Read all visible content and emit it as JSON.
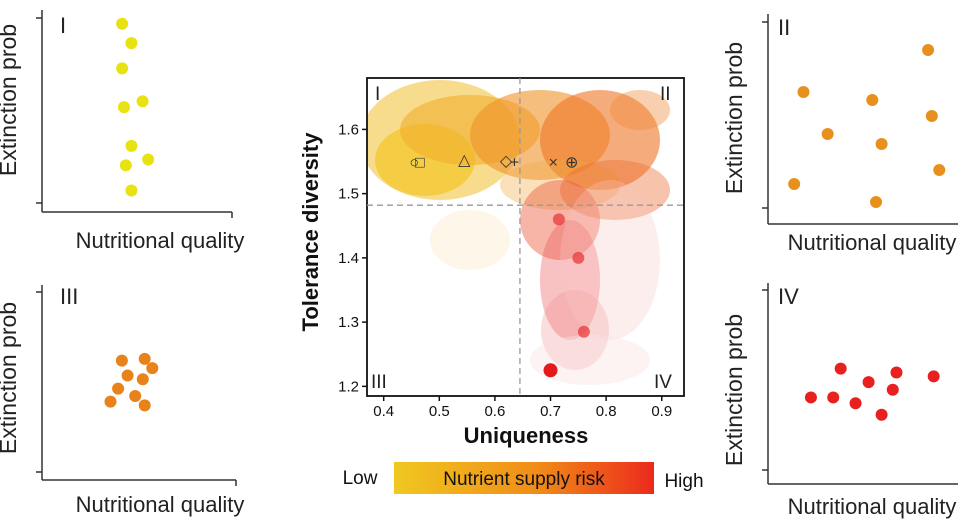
{
  "chart_data": [
    {
      "type": "scatter",
      "panel_label": "I",
      "xlabel": "Nutritional quality",
      "ylabel": "Extinction prob",
      "color": "#e8e212",
      "points": [
        [
          0.42,
          0.95
        ],
        [
          0.47,
          0.85
        ],
        [
          0.42,
          0.72
        ],
        [
          0.43,
          0.52
        ],
        [
          0.53,
          0.55
        ],
        [
          0.47,
          0.32
        ],
        [
          0.44,
          0.22
        ],
        [
          0.56,
          0.25
        ],
        [
          0.47,
          0.09
        ]
      ]
    },
    {
      "type": "scatter",
      "panel_label": "II",
      "xlabel": "Nutritional quality",
      "ylabel": "Extinction prob",
      "color": "#e8901e",
      "points": [
        [
          0.85,
          0.85
        ],
        [
          0.18,
          0.64
        ],
        [
          0.55,
          0.6
        ],
        [
          0.87,
          0.52
        ],
        [
          0.31,
          0.43
        ],
        [
          0.6,
          0.38
        ],
        [
          0.91,
          0.25
        ],
        [
          0.13,
          0.18
        ],
        [
          0.57,
          0.09
        ]
      ]
    },
    {
      "type": "scatter",
      "panel_label": "III",
      "xlabel": "Nutritional quality",
      "ylabel": "Extinction prob",
      "color": "#e8821a",
      "points": [
        [
          0.41,
          0.62
        ],
        [
          0.53,
          0.63
        ],
        [
          0.57,
          0.58
        ],
        [
          0.44,
          0.54
        ],
        [
          0.52,
          0.52
        ],
        [
          0.39,
          0.47
        ],
        [
          0.48,
          0.43
        ],
        [
          0.35,
          0.4
        ],
        [
          0.53,
          0.38
        ]
      ]
    },
    {
      "type": "scatter",
      "panel_label": "IV",
      "xlabel": "Nutritional quality",
      "ylabel": "Extinction prob",
      "color": "#e82020",
      "points": [
        [
          0.38,
          0.58
        ],
        [
          0.68,
          0.56
        ],
        [
          0.88,
          0.54
        ],
        [
          0.53,
          0.51
        ],
        [
          0.66,
          0.47
        ],
        [
          0.22,
          0.43
        ],
        [
          0.34,
          0.43
        ],
        [
          0.46,
          0.4
        ],
        [
          0.6,
          0.34
        ]
      ]
    },
    {
      "type": "scatter",
      "xlabel": "Uniqueness",
      "ylabel": "Tolerance diversity",
      "xlim": [
        0.37,
        0.94
      ],
      "ylim": [
        1.185,
        1.68
      ],
      "xticks": [
        "0.4",
        "0.5",
        "0.6",
        "0.7",
        "0.8",
        "0.9"
      ],
      "yticks": [
        "1.2",
        "1.3",
        "1.4",
        "1.5",
        "1.6"
      ],
      "quadrant_labels": [
        "I",
        "II",
        "III",
        "IV"
      ],
      "thresholds": {
        "x": 0.645,
        "y": 1.482
      },
      "markers": [
        {
          "symbol": "□",
          "x": 0.465,
          "y": 1.55
        },
        {
          "symbol": "○",
          "x": 0.455,
          "y": 1.55
        },
        {
          "symbol": "△",
          "x": 0.545,
          "y": 1.554
        },
        {
          "symbol": "◇",
          "x": 0.62,
          "y": 1.552
        },
        {
          "symbol": "+",
          "x": 0.635,
          "y": 1.55
        },
        {
          "symbol": "×",
          "x": 0.705,
          "y": 1.55
        },
        {
          "symbol": "⊕",
          "x": 0.738,
          "y": 1.55
        }
      ],
      "highlight_points": [
        {
          "x": 0.7,
          "y": 1.225
        },
        {
          "x": 0.76,
          "y": 1.285
        },
        {
          "x": 0.715,
          "y": 1.46
        },
        {
          "x": 0.75,
          "y": 1.4
        }
      ],
      "colorbar": {
        "label": "Nutrient supply risk",
        "low": "Low",
        "high": "High",
        "colors": [
          "#f0c020",
          "#f08018",
          "#e82828"
        ]
      }
    }
  ]
}
